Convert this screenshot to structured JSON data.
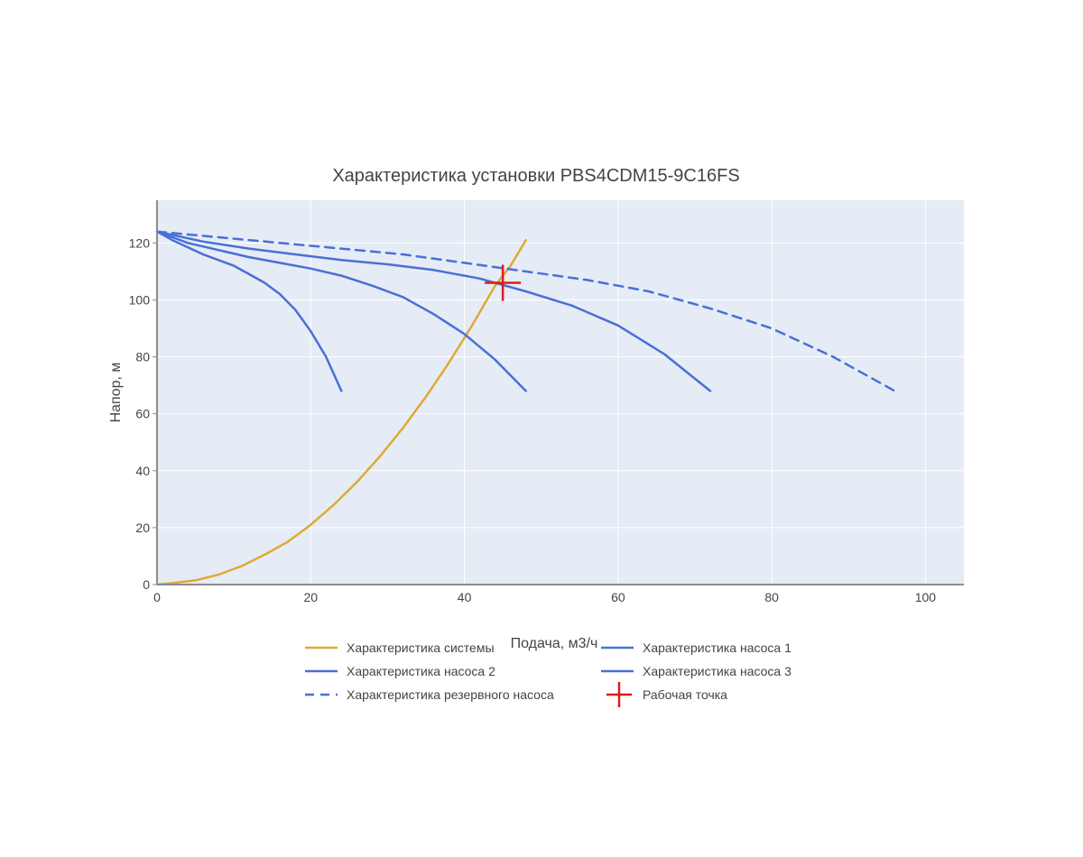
{
  "chart_data": {
    "type": "line",
    "title": "Характеристика установки PBS4CDM15-9C16FS",
    "xlabel": "Подача, м3/ч",
    "ylabel": "Напор, м",
    "xlim": [
      0,
      105
    ],
    "ylim": [
      0,
      135
    ],
    "xticks": [
      0,
      20,
      40,
      60,
      80,
      100
    ],
    "yticks": [
      0,
      20,
      40,
      60,
      80,
      100,
      120
    ],
    "grid": true,
    "legend_position": "bottom",
    "series": [
      {
        "name": "Характеристика системы",
        "color": "#e0a934",
        "dash": "solid",
        "marker": "none",
        "x": [
          0,
          2,
          5,
          8,
          11,
          14,
          17,
          20,
          23,
          26,
          29,
          32,
          35,
          38,
          41,
          44,
          46,
          48
        ],
        "y": [
          0,
          0.5,
          1.5,
          3.5,
          6.5,
          10.5,
          15,
          21,
          28,
          36,
          45,
          55,
          66,
          78,
          91,
          105,
          112,
          121
        ]
      },
      {
        "name": "Характеристика насоса 1",
        "color": "#4a6fd6",
        "dash": "solid",
        "marker": "none",
        "x": [
          0,
          2,
          4,
          6,
          8,
          10,
          12,
          14,
          16,
          18,
          20,
          22,
          24
        ],
        "y": [
          124,
          121,
          118.5,
          116,
          114,
          112,
          109,
          106,
          102,
          96.5,
          89,
          80,
          68
        ]
      },
      {
        "name": "Характеристика насоса 2",
        "color": "#4a6fd6",
        "dash": "solid",
        "marker": "none",
        "x": [
          0,
          4,
          8,
          12,
          16,
          20,
          24,
          28,
          32,
          36,
          40,
          44,
          48
        ],
        "y": [
          124,
          120,
          117.5,
          115,
          113,
          111,
          108.5,
          105,
          101,
          95,
          88,
          79,
          68
        ]
      },
      {
        "name": "Характеристика насоса 3",
        "color": "#4a6fd6",
        "dash": "solid",
        "marker": "none",
        "x": [
          0,
          6,
          12,
          18,
          24,
          30,
          36,
          42,
          48,
          54,
          60,
          66,
          72
        ],
        "y": [
          124,
          120.5,
          118,
          116,
          114,
          112.5,
          110.5,
          107.5,
          103,
          98,
          91,
          81,
          68
        ]
      },
      {
        "name": "Характеристика резервного насоса",
        "color": "#4a6fd6",
        "dash": "dashed",
        "marker": "none",
        "x": [
          0,
          8,
          16,
          24,
          32,
          40,
          48,
          56,
          64,
          72,
          80,
          88,
          96
        ],
        "y": [
          124,
          122,
          120,
          118,
          116,
          113,
          110,
          107,
          103,
          97,
          90,
          80,
          68
        ]
      },
      {
        "name": "Рабочая точка",
        "color": "#e01b1b",
        "dash": "none",
        "marker": "cross",
        "x": [
          45
        ],
        "y": [
          106
        ]
      }
    ]
  }
}
